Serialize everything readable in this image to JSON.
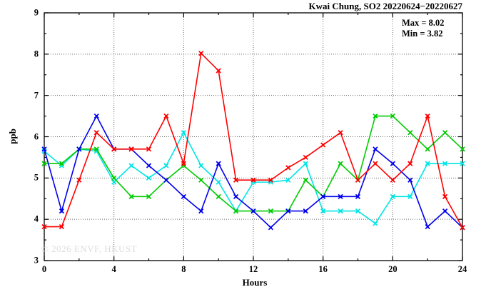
{
  "chart_data": {
    "type": "line",
    "title": "Kwai Chung, SO2 20220624−20220627",
    "annotations": {
      "max_label": "Max = 8.02",
      "min_label": "Min = 3.82"
    },
    "watermark": "© 2026 ENVF, HKUST",
    "xlabel": "Hours",
    "ylabel": "ppb",
    "xlim": [
      0,
      24
    ],
    "ylim": [
      3,
      9
    ],
    "xticks_major": [
      0,
      4,
      8,
      12,
      16,
      20,
      24
    ],
    "xtick_minor_step": 2,
    "yticks_major": [
      3,
      4,
      5,
      6,
      7,
      8,
      9
    ],
    "ytick_minor_step": 0.5,
    "grid": "dotted lines at major ticks, mirrored inward ticks on all frame sides",
    "legend_position": "top-right inside plot",
    "x": [
      0,
      1,
      2,
      3,
      4,
      5,
      6,
      7,
      8,
      9,
      10,
      11,
      12,
      13,
      14,
      15,
      16,
      17,
      18,
      19,
      20,
      21,
      22,
      23,
      24
    ],
    "series": [
      {
        "name": "series-cyan",
        "color": "#00e5e5",
        "values": [
          5.65,
          5.3,
          5.7,
          5.65,
          4.9,
          5.3,
          5.0,
          5.3,
          6.1,
          5.3,
          4.9,
          4.2,
          4.9,
          4.9,
          4.95,
          5.35,
          4.2,
          4.2,
          4.2,
          3.9,
          4.55,
          4.55,
          5.35,
          5.35,
          5.35
        ]
      },
      {
        "name": "series-green",
        "color": "#00cc00",
        "values": [
          5.35,
          5.35,
          5.7,
          5.7,
          5.0,
          4.55,
          4.55,
          4.95,
          5.3,
          4.95,
          4.55,
          4.2,
          4.2,
          4.2,
          4.2,
          4.95,
          4.55,
          5.35,
          4.95,
          6.5,
          6.5,
          6.1,
          5.7,
          6.1,
          5.7
        ]
      },
      {
        "name": "series-blue",
        "color": "#0000ee",
        "values": [
          5.7,
          4.2,
          5.7,
          6.5,
          5.7,
          5.7,
          5.3,
          4.95,
          4.55,
          4.2,
          5.35,
          4.55,
          4.2,
          3.8,
          4.2,
          4.2,
          4.55,
          4.55,
          4.55,
          5.7,
          5.35,
          4.95,
          3.82,
          4.2,
          3.8
        ]
      },
      {
        "name": "series-red",
        "color": "#ff0000",
        "values": [
          3.82,
          3.82,
          4.95,
          6.1,
          5.7,
          5.7,
          5.7,
          6.5,
          5.35,
          8.02,
          7.6,
          4.95,
          4.95,
          4.95,
          5.25,
          5.5,
          5.8,
          6.1,
          4.95,
          5.35,
          4.95,
          5.35,
          6.5,
          4.55,
          3.8
        ]
      }
    ],
    "frame_color": "#000000",
    "grid_color": "#666666"
  }
}
